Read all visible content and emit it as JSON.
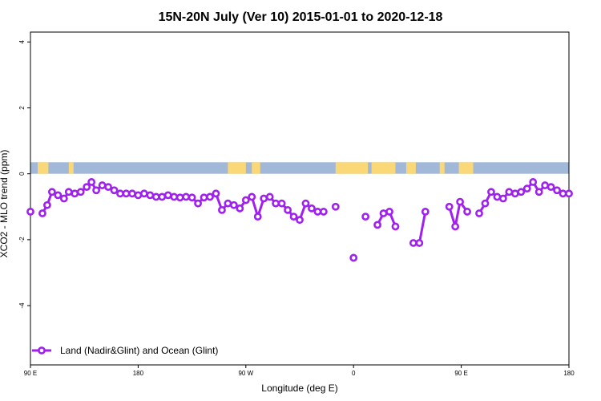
{
  "chart_data": {
    "type": "line",
    "title": "15N-20N July (Ver 10)   2015-01-01 to 2020-12-18",
    "xlabel": "Longitude (deg E)",
    "ylabel": "XCO2 - MLO trend (ppm)",
    "x_ticks": [
      {
        "value": 90,
        "label": "90 E"
      },
      {
        "value": 180,
        "label": "180"
      },
      {
        "value": 270,
        "label": "90 W"
      },
      {
        "value": 360,
        "label": "0"
      },
      {
        "value": 450,
        "label": "90 E"
      },
      {
        "value": 540,
        "label": "180"
      }
    ],
    "y_ticks": [
      -4,
      -2,
      0,
      2,
      4
    ],
    "xlim": [
      90,
      540
    ],
    "ylim": [
      -5.8,
      4.3
    ],
    "grid": false,
    "legend_position": "bottom-left",
    "land_ocean_strip": {
      "y_range": [
        0,
        0.35
      ],
      "ocean_color": "#a2b8d8",
      "land_color": "#fbd877",
      "land_x_ranges": [
        [
          96,
          105
        ],
        [
          122,
          126
        ],
        [
          255,
          270
        ],
        [
          275,
          282
        ],
        [
          345,
          372
        ],
        [
          375,
          395
        ],
        [
          404,
          412
        ],
        [
          432,
          436
        ],
        [
          448,
          460
        ]
      ]
    },
    "series": [
      {
        "name": "Land (Nadir&Glint) and Ocean (Glint)",
        "color": "#a020f0",
        "segments": [
          [
            [
              90,
              -1.15
            ]
          ],
          [
            [
              100,
              -1.2
            ],
            [
              104,
              -0.95
            ],
            [
              108,
              -0.55
            ],
            [
              113,
              -0.65
            ],
            [
              118,
              -0.75
            ],
            [
              122,
              -0.55
            ],
            [
              127,
              -0.6
            ],
            [
              132,
              -0.55
            ],
            [
              137,
              -0.4
            ],
            [
              141,
              -0.25
            ],
            [
              145,
              -0.5
            ],
            [
              150,
              -0.35
            ],
            [
              155,
              -0.4
            ],
            [
              160,
              -0.5
            ],
            [
              165,
              -0.6
            ],
            [
              170,
              -0.6
            ],
            [
              175,
              -0.6
            ],
            [
              180,
              -0.65
            ],
            [
              185,
              -0.6
            ],
            [
              190,
              -0.65
            ],
            [
              195,
              -0.7
            ],
            [
              200,
              -0.7
            ],
            [
              205,
              -0.65
            ],
            [
              210,
              -0.7
            ],
            [
              215,
              -0.72
            ],
            [
              220,
              -0.7
            ],
            [
              225,
              -0.72
            ],
            [
              230,
              -0.9
            ],
            [
              235,
              -0.72
            ],
            [
              240,
              -0.7
            ],
            [
              245,
              -0.6
            ],
            [
              250,
              -1.1
            ],
            [
              255,
              -0.9
            ],
            [
              260,
              -0.95
            ],
            [
              265,
              -1.05
            ],
            [
              270,
              -0.8
            ],
            [
              275,
              -0.7
            ],
            [
              280,
              -1.3
            ],
            [
              285,
              -0.75
            ],
            [
              290,
              -0.7
            ],
            [
              295,
              -0.9
            ],
            [
              300,
              -0.9
            ],
            [
              305,
              -1.1
            ],
            [
              310,
              -1.3
            ],
            [
              315,
              -1.4
            ],
            [
              320,
              -0.9
            ],
            [
              325,
              -1.05
            ],
            [
              330,
              -1.15
            ],
            [
              335,
              -1.15
            ]
          ],
          [
            [
              345,
              -1.0
            ]
          ],
          [
            [
              360,
              -2.55
            ]
          ],
          [
            [
              370,
              -1.3
            ]
          ],
          [
            [
              380,
              -1.55
            ],
            [
              385,
              -1.2
            ],
            [
              390,
              -1.15
            ],
            [
              395,
              -1.6
            ]
          ],
          [
            [
              410,
              -2.1
            ],
            [
              415,
              -2.1
            ],
            [
              420,
              -1.15
            ]
          ],
          [
            [
              440,
              -1.0
            ],
            [
              445,
              -1.6
            ],
            [
              449,
              -0.85
            ],
            [
              455,
              -1.15
            ]
          ],
          [
            [
              465,
              -1.2
            ],
            [
              470,
              -0.9
            ],
            [
              475,
              -0.55
            ],
            [
              480,
              -0.7
            ],
            [
              485,
              -0.75
            ],
            [
              490,
              -0.55
            ],
            [
              495,
              -0.6
            ],
            [
              500,
              -0.55
            ],
            [
              505,
              -0.45
            ],
            [
              510,
              -0.25
            ],
            [
              515,
              -0.55
            ],
            [
              520,
              -0.35
            ],
            [
              525,
              -0.4
            ],
            [
              530,
              -0.5
            ],
            [
              535,
              -0.6
            ],
            [
              540,
              -0.6
            ]
          ]
        ]
      }
    ]
  }
}
